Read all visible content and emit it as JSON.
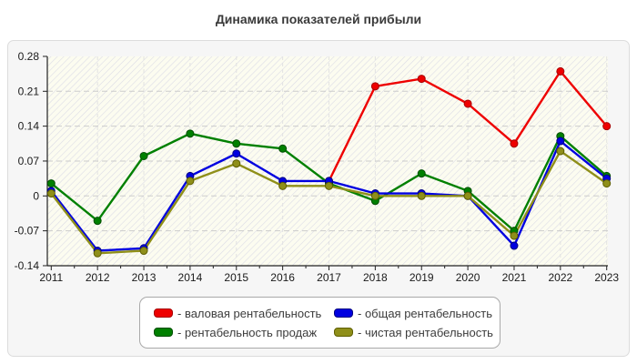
{
  "title": "Динамика показателей прибыли",
  "chart_data": {
    "type": "line",
    "x": [
      "2011",
      "2012",
      "2013",
      "2014",
      "2015",
      "2016",
      "2017",
      "2018",
      "2019",
      "2020",
      "2021",
      "2022",
      "2023"
    ],
    "series": [
      {
        "name": "валовая рентабельность",
        "color": "#ee0000",
        "marker_stroke": "#a50000",
        "values": [
          null,
          null,
          null,
          null,
          null,
          null,
          0.03,
          0.22,
          0.235,
          0.185,
          0.105,
          0.25,
          0.14
        ]
      },
      {
        "name": "рентабельность продаж",
        "color": "#008000",
        "marker_stroke": "#004d00",
        "values": [
          0.025,
          -0.05,
          0.08,
          0.125,
          0.105,
          0.095,
          0.025,
          -0.01,
          0.045,
          0.01,
          -0.07,
          0.12,
          0.04
        ]
      },
      {
        "name": "общая рентабельность",
        "color": "#0000e0",
        "marker_stroke": "#000080",
        "values": [
          0.01,
          -0.11,
          -0.105,
          0.04,
          0.085,
          0.03,
          0.03,
          0.005,
          0.005,
          0.0,
          -0.1,
          0.11,
          0.035
        ]
      },
      {
        "name": "чистая рентабельность",
        "color": "#8f8f19",
        "marker_stroke": "#5e5e00",
        "values": [
          0.005,
          -0.115,
          -0.11,
          0.03,
          0.065,
          0.02,
          0.02,
          0.0,
          0.0,
          0.0,
          -0.08,
          0.09,
          0.025
        ]
      }
    ],
    "ylim": [
      -0.14,
      0.28
    ],
    "yticks": {
      "values": [
        0.28,
        0.21,
        0.14,
        0.07,
        0,
        -0.07,
        -0.14
      ],
      "labels": [
        "0.28",
        "0.21",
        "0.14",
        "0.07",
        "0",
        "-0.07",
        "-0.14"
      ]
    },
    "grid": "dashed horizontal and vertical",
    "plot_bg": "#fcfcf0",
    "hatch_color": "#dcdce6",
    "legend_position": "bottom"
  },
  "legend": {
    "items": [
      {
        "label": "- валовая рентабельность",
        "color": "#ee0000",
        "border": "#a50000"
      },
      {
        "label": "- общая рентабельность",
        "color": "#0000e0",
        "border": "#000080"
      },
      {
        "label": "- рентабельность продаж",
        "color": "#008000",
        "border": "#004d00"
      },
      {
        "label": "- чистая рентабельность",
        "color": "#8f8f19",
        "border": "#5e5e00"
      }
    ]
  }
}
